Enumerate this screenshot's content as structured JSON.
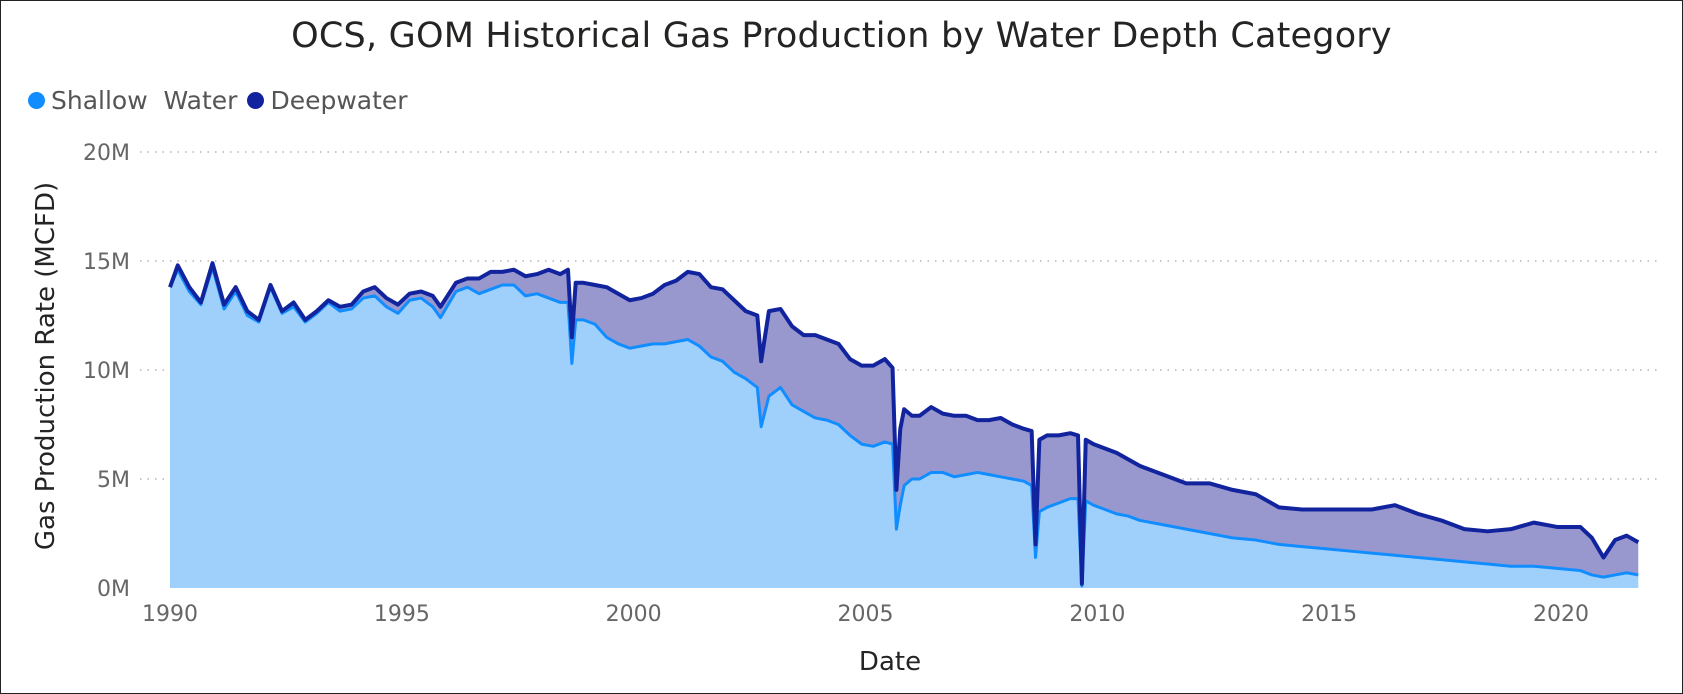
{
  "chart_data": {
    "type": "area",
    "title": "OCS, GOM Historical Gas Production by Water Depth Category",
    "xlabel": "Date",
    "ylabel": "Gas Production Rate (MCFD)",
    "ylim": [
      0,
      20000000
    ],
    "xlim": [
      "1990-01",
      "2021-09"
    ],
    "x_ticks": [
      "1990",
      "1995",
      "2000",
      "2005",
      "2010",
      "2015",
      "2020"
    ],
    "y_ticks": [
      "0M",
      "5M",
      "10M",
      "15M",
      "20M"
    ],
    "stacked": true,
    "grid": true,
    "legend_position": "top-left",
    "series": [
      {
        "name": "Shallow  Water",
        "color": "#118dff",
        "fill": "#9fd0fc",
        "x": [
          "1990-01",
          "1990-03",
          "1990-06",
          "1990-09",
          "1990-12",
          "1991-03",
          "1991-06",
          "1991-09",
          "1991-12",
          "1992-03",
          "1992-06",
          "1992-09",
          "1992-12",
          "1993-03",
          "1993-06",
          "1993-09",
          "1993-12",
          "1994-03",
          "1994-06",
          "1994-09",
          "1994-12",
          "1995-03",
          "1995-06",
          "1995-09",
          "1995-11",
          "1996-03",
          "1996-06",
          "1996-09",
          "1996-12",
          "1997-03",
          "1997-06",
          "1997-09",
          "1997-12",
          "1998-03",
          "1998-06",
          "1998-08",
          "1998-09",
          "1998-10",
          "1998-12",
          "1999-03",
          "1999-06",
          "1999-09",
          "1999-12",
          "2000-03",
          "2000-06",
          "2000-09",
          "2000-12",
          "2001-03",
          "2001-06",
          "2001-09",
          "2001-12",
          "2002-03",
          "2002-06",
          "2002-09",
          "2002-10",
          "2002-12",
          "2003-03",
          "2003-06",
          "2003-09",
          "2003-12",
          "2004-03",
          "2004-06",
          "2004-09",
          "2004-12",
          "2005-03",
          "2005-06",
          "2005-08",
          "2005-09",
          "2005-10",
          "2005-11",
          "2006-01",
          "2006-03",
          "2006-06",
          "2006-09",
          "2006-12",
          "2007-03",
          "2007-06",
          "2007-09",
          "2007-12",
          "2008-03",
          "2008-06",
          "2008-08",
          "2008-09",
          "2008-10",
          "2008-12",
          "2009-03",
          "2009-06",
          "2009-08",
          "2009-09",
          "2009-10",
          "2009-12",
          "2010-03",
          "2010-06",
          "2010-09",
          "2010-12",
          "2011-06",
          "2011-12",
          "2012-06",
          "2012-12",
          "2013-06",
          "2013-12",
          "2014-06",
          "2014-12",
          "2015-06",
          "2015-12",
          "2016-06",
          "2016-12",
          "2017-06",
          "2017-12",
          "2018-06",
          "2018-12",
          "2019-06",
          "2019-12",
          "2020-06",
          "2020-09",
          "2020-12",
          "2021-03",
          "2021-06",
          "2021-09"
        ],
        "values": [
          13800000,
          14600000,
          13600000,
          13000000,
          14700000,
          12800000,
          13600000,
          12500000,
          12200000,
          13800000,
          12600000,
          12900000,
          12200000,
          12600000,
          13100000,
          12700000,
          12800000,
          13300000,
          13400000,
          12900000,
          12600000,
          13200000,
          13300000,
          12900000,
          12400000,
          13600000,
          13800000,
          13500000,
          13700000,
          13900000,
          13900000,
          13400000,
          13500000,
          13300000,
          13100000,
          13100000,
          10300000,
          12300000,
          12300000,
          12100000,
          11500000,
          11200000,
          11000000,
          11100000,
          11200000,
          11200000,
          11300000,
          11400000,
          11100000,
          10600000,
          10400000,
          9900000,
          9600000,
          9200000,
          7400000,
          8800000,
          9200000,
          8400000,
          8100000,
          7800000,
          7700000,
          7500000,
          7000000,
          6600000,
          6500000,
          6700000,
          6600000,
          2700000,
          3800000,
          4700000,
          5000000,
          5000000,
          5300000,
          5300000,
          5100000,
          5200000,
          5300000,
          5200000,
          5100000,
          5000000,
          4900000,
          4700000,
          1400000,
          3500000,
          3700000,
          3900000,
          4100000,
          4100000,
          100000,
          4000000,
          3800000,
          3600000,
          3400000,
          3300000,
          3100000,
          2900000,
          2700000,
          2500000,
          2300000,
          2200000,
          2000000,
          1900000,
          1800000,
          1700000,
          1600000,
          1500000,
          1400000,
          1300000,
          1200000,
          1100000,
          1000000,
          1000000,
          900000,
          800000,
          600000,
          500000,
          600000,
          700000,
          600000
        ]
      },
      {
        "name": "Deepwater",
        "color": "#12239e",
        "fill": "#9898ce",
        "x": [
          "1990-01",
          "1990-03",
          "1990-06",
          "1990-09",
          "1990-12",
          "1991-03",
          "1991-06",
          "1991-09",
          "1991-12",
          "1992-03",
          "1992-06",
          "1992-09",
          "1992-12",
          "1993-03",
          "1993-06",
          "1993-09",
          "1993-12",
          "1994-03",
          "1994-06",
          "1994-09",
          "1994-12",
          "1995-03",
          "1995-06",
          "1995-09",
          "1995-11",
          "1996-03",
          "1996-06",
          "1996-09",
          "1996-12",
          "1997-03",
          "1997-06",
          "1997-09",
          "1997-12",
          "1998-03",
          "1998-06",
          "1998-08",
          "1998-09",
          "1998-10",
          "1998-12",
          "1999-03",
          "1999-06",
          "1999-09",
          "1999-12",
          "2000-03",
          "2000-06",
          "2000-09",
          "2000-12",
          "2001-03",
          "2001-06",
          "2001-09",
          "2001-12",
          "2002-03",
          "2002-06",
          "2002-09",
          "2002-10",
          "2002-12",
          "2003-03",
          "2003-06",
          "2003-09",
          "2003-12",
          "2004-03",
          "2004-06",
          "2004-09",
          "2004-12",
          "2005-03",
          "2005-06",
          "2005-08",
          "2005-09",
          "2005-10",
          "2005-11",
          "2006-01",
          "2006-03",
          "2006-06",
          "2006-09",
          "2006-12",
          "2007-03",
          "2007-06",
          "2007-09",
          "2007-12",
          "2008-03",
          "2008-06",
          "2008-08",
          "2008-09",
          "2008-10",
          "2008-12",
          "2009-03",
          "2009-06",
          "2009-08",
          "2009-09",
          "2009-10",
          "2009-12",
          "2010-03",
          "2010-06",
          "2010-09",
          "2010-12",
          "2011-06",
          "2011-12",
          "2012-06",
          "2012-12",
          "2013-06",
          "2013-12",
          "2014-06",
          "2014-12",
          "2015-06",
          "2015-12",
          "2016-06",
          "2016-12",
          "2017-06",
          "2017-12",
          "2018-06",
          "2018-12",
          "2019-06",
          "2019-12",
          "2020-06",
          "2020-09",
          "2020-12",
          "2021-03",
          "2021-06",
          "2021-09"
        ],
        "values": [
          0,
          200000,
          200000,
          100000,
          200000,
          200000,
          200000,
          200000,
          100000,
          100000,
          100000,
          200000,
          100000,
          100000,
          100000,
          200000,
          200000,
          300000,
          400000,
          400000,
          400000,
          300000,
          300000,
          500000,
          500000,
          400000,
          400000,
          700000,
          800000,
          600000,
          700000,
          900000,
          900000,
          1300000,
          1300000,
          1500000,
          1200000,
          1700000,
          1700000,
          1800000,
          2300000,
          2300000,
          2200000,
          2200000,
          2300000,
          2700000,
          2800000,
          3100000,
          3300000,
          3200000,
          3300000,
          3300000,
          3100000,
          3300000,
          3000000,
          3900000,
          3600000,
          3600000,
          3500000,
          3800000,
          3700000,
          3700000,
          3500000,
          3600000,
          3700000,
          3800000,
          3500000,
          1800000,
          3500000,
          3500000,
          2900000,
          2900000,
          3000000,
          2700000,
          2800000,
          2700000,
          2400000,
          2500000,
          2700000,
          2500000,
          2400000,
          2500000,
          600000,
          3300000,
          3300000,
          3100000,
          3000000,
          2900000,
          100000,
          2800000,
          2800000,
          2800000,
          2800000,
          2600000,
          2500000,
          2300000,
          2100000,
          2300000,
          2200000,
          2100000,
          1700000,
          1700000,
          1800000,
          1900000,
          2000000,
          2300000,
          2000000,
          1800000,
          1500000,
          1500000,
          1700000,
          2000000,
          1900000,
          2000000,
          1700000,
          900000,
          1600000,
          1700000,
          1500000
        ]
      }
    ]
  }
}
